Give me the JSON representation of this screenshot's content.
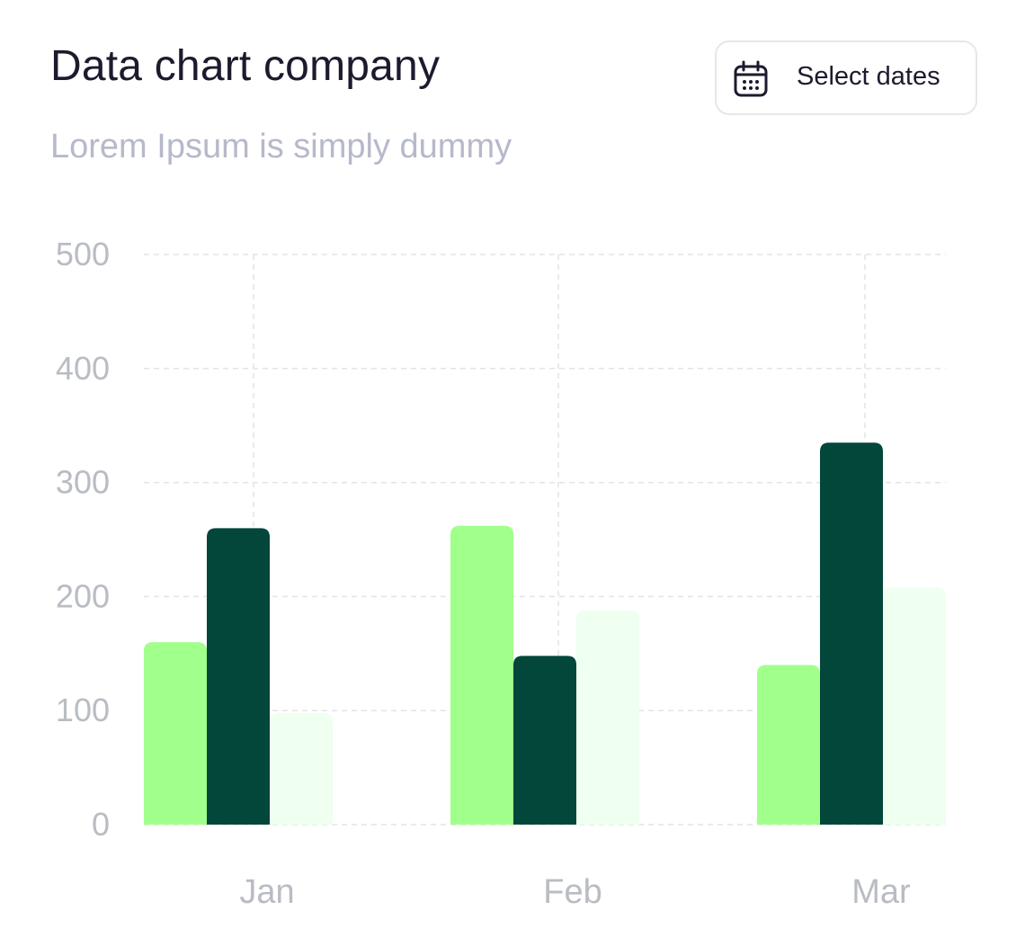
{
  "header": {
    "title": "Data chart company",
    "subtitle": "Lorem Ipsum is simply dummy",
    "date_button": {
      "label": "Select dates",
      "icon": "calendar-icon"
    }
  },
  "chart_data": {
    "type": "bar",
    "categories": [
      "Jan",
      "Feb",
      "Mar"
    ],
    "series": [
      {
        "values": [
          160,
          262,
          140
        ],
        "color": "#a1ff8c"
      },
      {
        "values": [
          260,
          148,
          335
        ],
        "color": "#03463a"
      },
      {
        "values": [
          98,
          188,
          208
        ],
        "color": "#effff0"
      }
    ],
    "yticks": [
      0,
      100,
      200,
      300,
      400,
      500
    ],
    "ylim": [
      0,
      500
    ],
    "grid": true,
    "xlabel": "",
    "ylabel": ""
  }
}
